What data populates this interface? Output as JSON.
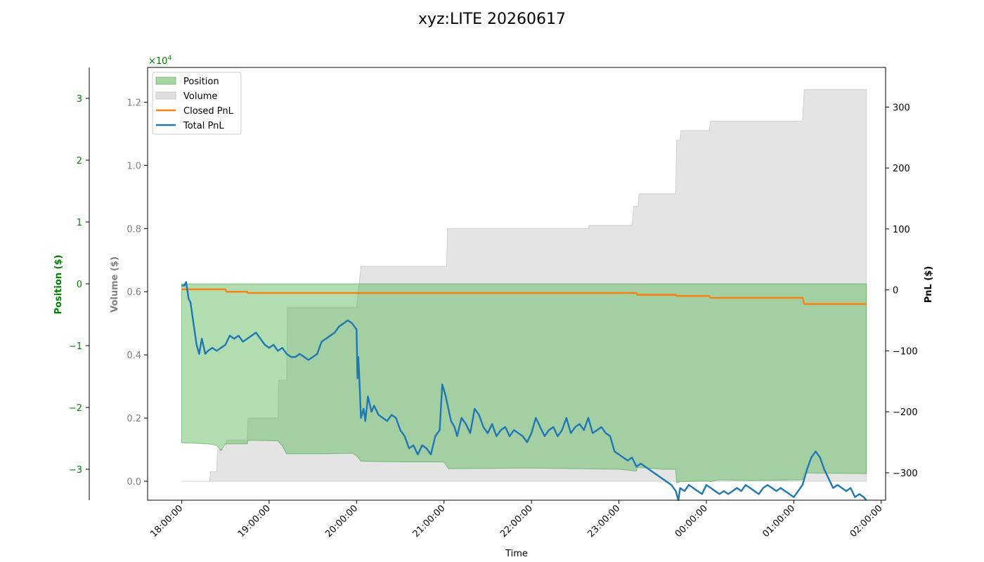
{
  "chart_data": {
    "type": "area",
    "title": "xyz:LITE 20260617",
    "xlabel": "Time",
    "x_ticks": [
      "18:00:00",
      "19:00:00",
      "20:00:00",
      "21:00:00",
      "22:00:00",
      "23:00:00",
      "00:00:00",
      "01:00:00",
      "02:00:00"
    ],
    "axes": {
      "position": {
        "label": "Position ($)",
        "ticks": [
          "−3",
          "−2",
          "−1",
          "0",
          "1",
          "2",
          "3"
        ],
        "range": [
          -3.5,
          3.5
        ],
        "color": "#008000",
        "multiplier": "×10",
        "multiplier_exp": "4"
      },
      "volume": {
        "label": "Volume ($)",
        "ticks": [
          "0.0",
          "0.2",
          "0.4",
          "0.6",
          "0.8",
          "1.0",
          "1.2"
        ],
        "range": [
          -0.06,
          1.31
        ],
        "color": "#808080"
      },
      "pnl": {
        "label": "PnL ($)",
        "ticks": [
          "−300",
          "−200",
          "−100",
          "0",
          "100",
          "200",
          "300"
        ],
        "range": [
          -345,
          365
        ],
        "color": "#000000"
      }
    },
    "legend": {
      "placement": "upper-left",
      "entries": [
        {
          "label": "Position",
          "kind": "patch",
          "color": "#a8d5a3",
          "edge": "#7fbf7f"
        },
        {
          "label": "Volume",
          "kind": "patch",
          "color": "#e0e0e0",
          "edge": "#cccccc"
        },
        {
          "label": "Closed PnL",
          "kind": "line",
          "color": "#ff7f0e"
        },
        {
          "label": "Total PnL",
          "kind": "line",
          "color": "#1f77b4"
        }
      ]
    },
    "series": [
      {
        "name": "Position",
        "unit": "$ (x10^4)",
        "points": [
          [
            18.0,
            -2.57
          ],
          [
            18.3,
            -2.59
          ],
          [
            18.4,
            -2.61
          ],
          [
            18.45,
            -2.7
          ],
          [
            18.5,
            -2.59
          ],
          [
            18.75,
            -2.59
          ],
          [
            18.76,
            -2.53
          ],
          [
            19.1,
            -2.54
          ],
          [
            19.15,
            -2.62
          ],
          [
            19.2,
            -2.75
          ],
          [
            19.6,
            -2.75
          ],
          [
            19.95,
            -2.74
          ],
          [
            20.0,
            -2.78
          ],
          [
            20.05,
            -2.87
          ],
          [
            20.5,
            -2.88
          ],
          [
            21.0,
            -2.88
          ],
          [
            21.05,
            -2.99
          ],
          [
            22.0,
            -2.98
          ],
          [
            22.5,
            -2.99
          ],
          [
            23.0,
            -3.0
          ],
          [
            23.2,
            -3.03
          ],
          [
            23.21,
            -2.97
          ],
          [
            23.5,
            -3.0
          ],
          [
            23.65,
            -3.0
          ],
          [
            23.66,
            -3.22
          ],
          [
            23.7,
            -3.2
          ],
          [
            24.0,
            -3.19
          ],
          [
            24.05,
            -3.2
          ],
          [
            24.15,
            -3.17
          ],
          [
            24.5,
            -3.18
          ],
          [
            25.1,
            -3.17
          ],
          [
            25.12,
            -3.06
          ],
          [
            25.8,
            -3.07
          ],
          [
            25.83,
            -3.07
          ]
        ]
      },
      {
        "name": "Volume",
        "unit": "$ (x10^4)",
        "points": [
          [
            18.0,
            0.0
          ],
          [
            18.32,
            0.0
          ],
          [
            18.33,
            0.03
          ],
          [
            18.4,
            0.03
          ],
          [
            18.41,
            0.1
          ],
          [
            18.5,
            0.1
          ],
          [
            18.51,
            0.13
          ],
          [
            18.75,
            0.13
          ],
          [
            18.76,
            0.2
          ],
          [
            19.1,
            0.2
          ],
          [
            19.11,
            0.32
          ],
          [
            19.2,
            0.32
          ],
          [
            19.21,
            0.55
          ],
          [
            20.0,
            0.55
          ],
          [
            20.02,
            0.6
          ],
          [
            20.05,
            0.68
          ],
          [
            21.03,
            0.68
          ],
          [
            21.04,
            0.8
          ],
          [
            22.65,
            0.8
          ],
          [
            22.66,
            0.81
          ],
          [
            23.15,
            0.81
          ],
          [
            23.17,
            0.87
          ],
          [
            23.22,
            0.87
          ],
          [
            23.23,
            0.91
          ],
          [
            23.65,
            0.91
          ],
          [
            23.66,
            1.08
          ],
          [
            23.7,
            1.08
          ],
          [
            23.71,
            1.11
          ],
          [
            24.03,
            1.11
          ],
          [
            24.05,
            1.14
          ],
          [
            25.1,
            1.14
          ],
          [
            25.12,
            1.24
          ],
          [
            25.83,
            1.24
          ]
        ]
      },
      {
        "name": "Closed PnL",
        "unit": "$",
        "points": [
          [
            18.0,
            1
          ],
          [
            18.5,
            1
          ],
          [
            18.51,
            -3
          ],
          [
            18.75,
            -3
          ],
          [
            18.76,
            -5
          ],
          [
            23.2,
            -5
          ],
          [
            23.21,
            -8
          ],
          [
            23.65,
            -8
          ],
          [
            23.66,
            -10
          ],
          [
            24.03,
            -10
          ],
          [
            24.05,
            -13
          ],
          [
            25.1,
            -13
          ],
          [
            25.12,
            -23
          ],
          [
            25.83,
            -23
          ]
        ]
      },
      {
        "name": "Total PnL",
        "unit": "$",
        "points": [
          [
            18.0,
            7
          ],
          [
            18.03,
            7
          ],
          [
            18.05,
            13
          ],
          [
            18.08,
            -15
          ],
          [
            18.1,
            -20
          ],
          [
            18.13,
            -50
          ],
          [
            18.17,
            -90
          ],
          [
            18.2,
            -105
          ],
          [
            18.23,
            -80
          ],
          [
            18.27,
            -105
          ],
          [
            18.3,
            -100
          ],
          [
            18.35,
            -95
          ],
          [
            18.4,
            -100
          ],
          [
            18.45,
            -95
          ],
          [
            18.5,
            -90
          ],
          [
            18.55,
            -75
          ],
          [
            18.6,
            -80
          ],
          [
            18.65,
            -75
          ],
          [
            18.7,
            -85
          ],
          [
            18.75,
            -80
          ],
          [
            18.8,
            -75
          ],
          [
            18.85,
            -70
          ],
          [
            18.9,
            -80
          ],
          [
            18.95,
            -90
          ],
          [
            19.0,
            -95
          ],
          [
            19.05,
            -90
          ],
          [
            19.1,
            -100
          ],
          [
            19.15,
            -95
          ],
          [
            19.2,
            -105
          ],
          [
            19.25,
            -110
          ],
          [
            19.3,
            -110
          ],
          [
            19.35,
            -105
          ],
          [
            19.4,
            -110
          ],
          [
            19.45,
            -115
          ],
          [
            19.5,
            -110
          ],
          [
            19.55,
            -105
          ],
          [
            19.6,
            -85
          ],
          [
            19.65,
            -80
          ],
          [
            19.7,
            -75
          ],
          [
            19.75,
            -70
          ],
          [
            19.8,
            -60
          ],
          [
            19.85,
            -55
          ],
          [
            19.9,
            -50
          ],
          [
            19.95,
            -55
          ],
          [
            20.0,
            -65
          ],
          [
            20.01,
            -145
          ],
          [
            20.02,
            -110
          ],
          [
            20.03,
            -140
          ],
          [
            20.05,
            -210
          ],
          [
            20.08,
            -195
          ],
          [
            20.1,
            -215
          ],
          [
            20.13,
            -175
          ],
          [
            20.17,
            -200
          ],
          [
            20.2,
            -190
          ],
          [
            20.25,
            -205
          ],
          [
            20.3,
            -210
          ],
          [
            20.35,
            -215
          ],
          [
            20.4,
            -205
          ],
          [
            20.45,
            -210
          ],
          [
            20.5,
            -230
          ],
          [
            20.55,
            -240
          ],
          [
            20.6,
            -260
          ],
          [
            20.65,
            -255
          ],
          [
            20.7,
            -270
          ],
          [
            20.75,
            -255
          ],
          [
            20.8,
            -260
          ],
          [
            20.85,
            -270
          ],
          [
            20.9,
            -240
          ],
          [
            20.95,
            -230
          ],
          [
            20.98,
            -155
          ],
          [
            21.02,
            -175
          ],
          [
            21.05,
            -195
          ],
          [
            21.08,
            -215
          ],
          [
            21.12,
            -225
          ],
          [
            21.15,
            -240
          ],
          [
            21.2,
            -210
          ],
          [
            21.25,
            -220
          ],
          [
            21.3,
            -235
          ],
          [
            21.35,
            -195
          ],
          [
            21.4,
            -205
          ],
          [
            21.45,
            -225
          ],
          [
            21.5,
            -235
          ],
          [
            21.55,
            -220
          ],
          [
            21.6,
            -240
          ],
          [
            21.65,
            -230
          ],
          [
            21.7,
            -225
          ],
          [
            21.75,
            -240
          ],
          [
            21.8,
            -230
          ],
          [
            21.85,
            -235
          ],
          [
            21.9,
            -240
          ],
          [
            21.95,
            -250
          ],
          [
            22.0,
            -235
          ],
          [
            22.05,
            -210
          ],
          [
            22.1,
            -225
          ],
          [
            22.15,
            -240
          ],
          [
            22.2,
            -230
          ],
          [
            22.25,
            -225
          ],
          [
            22.3,
            -240
          ],
          [
            22.35,
            -230
          ],
          [
            22.4,
            -210
          ],
          [
            22.45,
            -235
          ],
          [
            22.5,
            -225
          ],
          [
            22.55,
            -220
          ],
          [
            22.6,
            -230
          ],
          [
            22.65,
            -210
          ],
          [
            22.7,
            -235
          ],
          [
            22.75,
            -230
          ],
          [
            22.8,
            -225
          ],
          [
            22.85,
            -235
          ],
          [
            22.9,
            -240
          ],
          [
            22.95,
            -265
          ],
          [
            23.0,
            -270
          ],
          [
            23.05,
            -275
          ],
          [
            23.1,
            -280
          ],
          [
            23.15,
            -275
          ],
          [
            23.2,
            -290
          ],
          [
            23.25,
            -285
          ],
          [
            23.3,
            -290
          ],
          [
            23.35,
            -295
          ],
          [
            23.4,
            -300
          ],
          [
            23.45,
            -305
          ],
          [
            23.5,
            -310
          ],
          [
            23.55,
            -315
          ],
          [
            23.6,
            -320
          ],
          [
            23.65,
            -330
          ],
          [
            23.68,
            -345
          ],
          [
            23.7,
            -325
          ],
          [
            23.75,
            -330
          ],
          [
            23.8,
            -320
          ],
          [
            23.85,
            -325
          ],
          [
            23.9,
            -330
          ],
          [
            23.95,
            -335
          ],
          [
            24.0,
            -320
          ],
          [
            24.05,
            -325
          ],
          [
            24.1,
            -330
          ],
          [
            24.15,
            -335
          ],
          [
            24.2,
            -330
          ],
          [
            24.25,
            -335
          ],
          [
            24.3,
            -330
          ],
          [
            24.35,
            -325
          ],
          [
            24.4,
            -330
          ],
          [
            24.45,
            -320
          ],
          [
            24.5,
            -325
          ],
          [
            24.55,
            -330
          ],
          [
            24.6,
            -335
          ],
          [
            24.65,
            -325
          ],
          [
            24.7,
            -320
          ],
          [
            24.75,
            -325
          ],
          [
            24.8,
            -330
          ],
          [
            24.85,
            -325
          ],
          [
            24.9,
            -330
          ],
          [
            24.95,
            -335
          ],
          [
            25.0,
            -340
          ],
          [
            25.05,
            -330
          ],
          [
            25.1,
            -320
          ],
          [
            25.15,
            -295
          ],
          [
            25.2,
            -275
          ],
          [
            25.25,
            -265
          ],
          [
            25.3,
            -275
          ],
          [
            25.35,
            -295
          ],
          [
            25.4,
            -310
          ],
          [
            25.45,
            -325
          ],
          [
            25.5,
            -320
          ],
          [
            25.55,
            -325
          ],
          [
            25.6,
            -330
          ],
          [
            25.65,
            -325
          ],
          [
            25.7,
            -340
          ],
          [
            25.75,
            -335
          ],
          [
            25.8,
            -340
          ],
          [
            25.83,
            -345
          ]
        ]
      }
    ],
    "x_range": [
      17.61,
      26.05
    ],
    "grid": false
  }
}
